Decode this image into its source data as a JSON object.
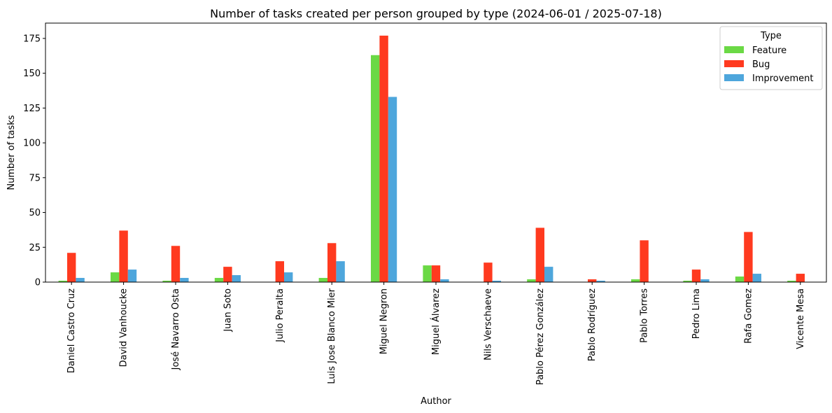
{
  "chart_data": {
    "type": "bar",
    "title": "Number of tasks created per person grouped by type (2024-06-01 / 2025-07-18)",
    "xlabel": "Author",
    "ylabel": "Number of tasks",
    "ylim": [
      0,
      186
    ],
    "yticks": [
      0,
      25,
      50,
      75,
      100,
      125,
      150,
      175
    ],
    "grid": false,
    "legend": {
      "title": "Type",
      "placement": "top-right"
    },
    "categories": [
      "Daniel Castro Cruz",
      "David Vanhoucke",
      "José Navarro Osta",
      "Juan Soto",
      "Julio Peralta",
      "Luis Jose Blanco Mier",
      "Miguel Negron",
      "Miguel Álvarez",
      "Nils Verschaeve",
      "Pablo Pérez González",
      "Pablo Rodríguez",
      "Pablo Torres",
      "Pedro Lima",
      "Rafa Gomez",
      "Vicente Mesa"
    ],
    "series": [
      {
        "name": "Feature",
        "color": "#6bd945",
        "values": [
          1,
          7,
          1,
          3,
          0,
          3,
          163,
          12,
          0,
          2,
          0,
          2,
          1,
          4,
          1
        ]
      },
      {
        "name": "Bug",
        "color": "#ff3a1f",
        "values": [
          21,
          37,
          26,
          11,
          15,
          28,
          177,
          12,
          14,
          39,
          2,
          30,
          9,
          36,
          6
        ]
      },
      {
        "name": "Improvement",
        "color": "#4ea6dc",
        "values": [
          3,
          9,
          3,
          5,
          7,
          15,
          133,
          2,
          1,
          11,
          1,
          0,
          2,
          6,
          0
        ]
      }
    ]
  }
}
